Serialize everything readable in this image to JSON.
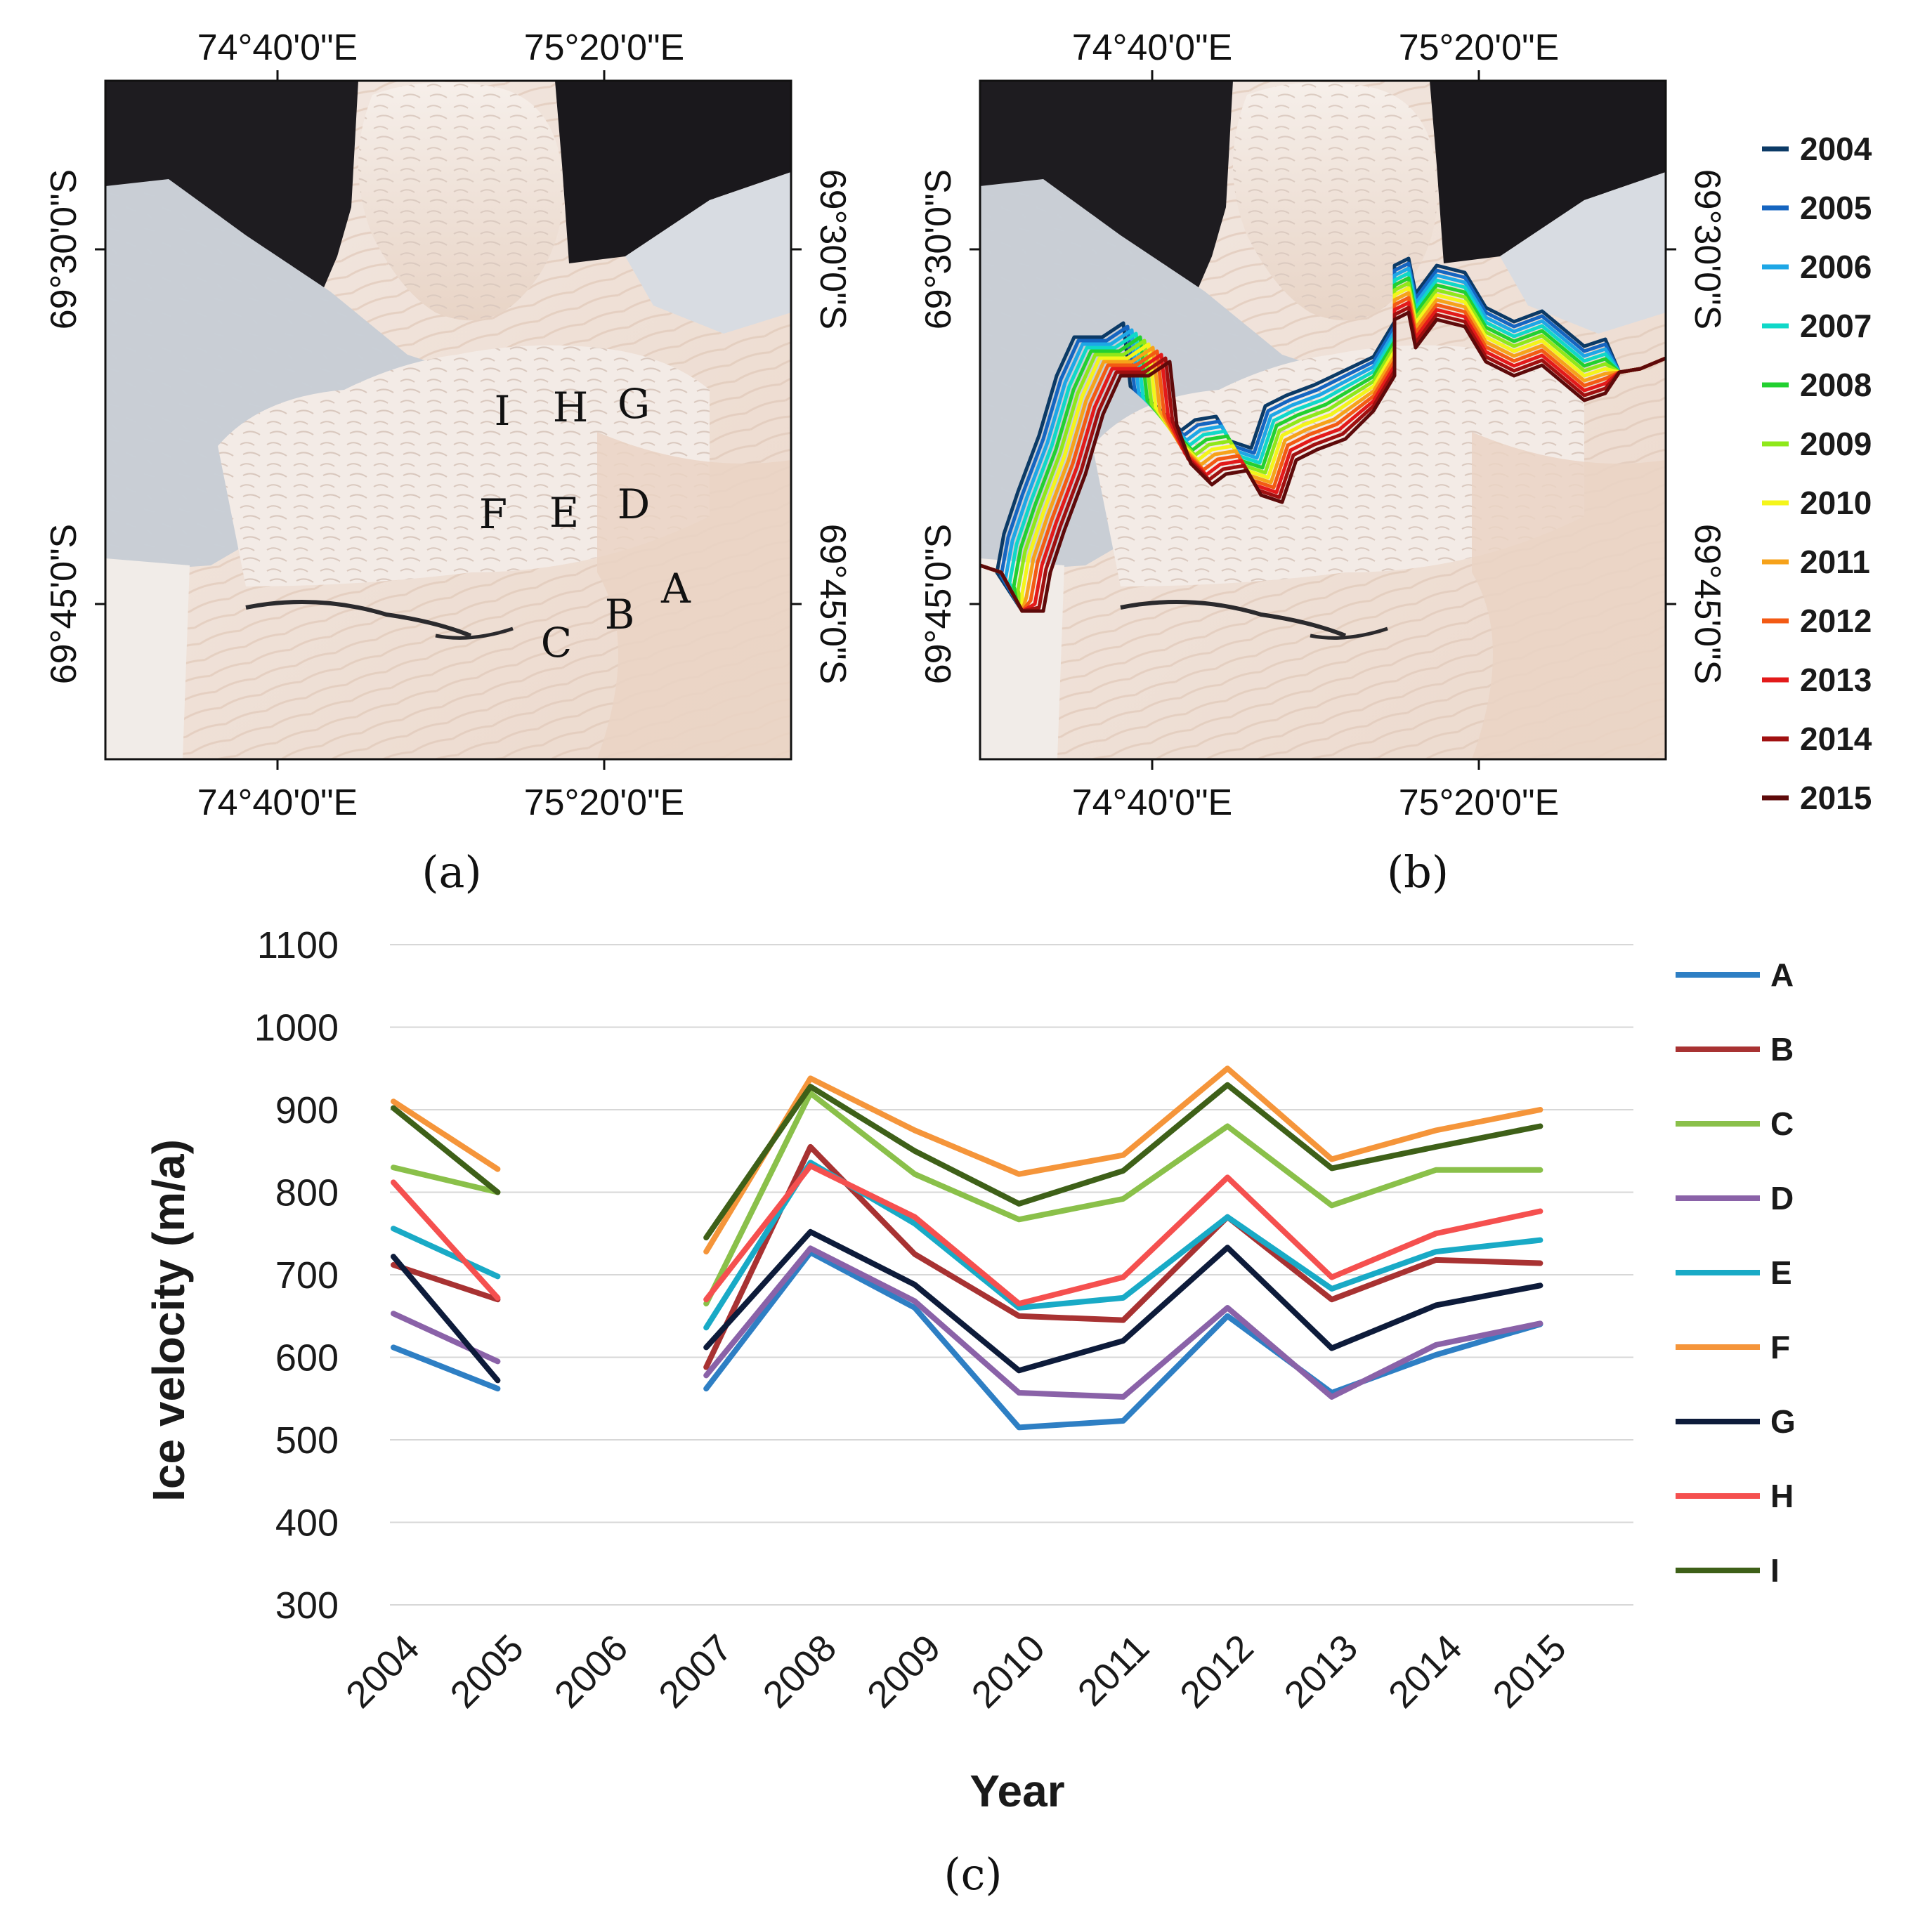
{
  "map_a": {
    "top_lon_labels": [
      "74°40'0\"E",
      "75°20'0\"E"
    ],
    "bottom_lon_labels": [
      "74°40'0\"E",
      "75°20'0\"E"
    ],
    "left_lat_labels": [
      "69°30'0\"S",
      "69°45'0\"S"
    ],
    "right_lat_labels": [
      "69°30'0\"S",
      "69°45'0\"S"
    ],
    "points": [
      "I",
      "H",
      "G",
      "F",
      "E",
      "D",
      "A",
      "B",
      "C"
    ],
    "caption": "(a)"
  },
  "map_b": {
    "top_lon_labels": [
      "74°40'0\"E",
      "75°20'0\"E"
    ],
    "bottom_lon_labels": [
      "74°40'0\"E",
      "75°20'0\"E"
    ],
    "left_lat_labels": [
      "69°30'0\"S",
      "69°45'0\"S"
    ],
    "right_lat_labels": [
      "69°30'0\"S",
      "69°45'0\"S"
    ],
    "legend": [
      {
        "year": "2004",
        "color": "#0b3a66"
      },
      {
        "year": "2005",
        "color": "#1565c0"
      },
      {
        "year": "2006",
        "color": "#1ea7e6"
      },
      {
        "year": "2007",
        "color": "#10d8c8"
      },
      {
        "year": "2008",
        "color": "#22d030"
      },
      {
        "year": "2009",
        "color": "#8fe81a"
      },
      {
        "year": "2010",
        "color": "#f4f51a"
      },
      {
        "year": "2011",
        "color": "#f6a21a"
      },
      {
        "year": "2012",
        "color": "#f35a14"
      },
      {
        "year": "2013",
        "color": "#e31a1a"
      },
      {
        "year": "2014",
        "color": "#a01010"
      },
      {
        "year": "2015",
        "color": "#5e0a0a"
      }
    ],
    "caption": "(b)"
  },
  "chart_data": {
    "type": "line",
    "title": "",
    "xlabel": "Year",
    "ylabel": "Ice velocity (m/a)",
    "categories": [
      "2004",
      "2005",
      "2006",
      "2007",
      "2008",
      "2009",
      "2010",
      "2011",
      "2012",
      "2013",
      "2014",
      "2015"
    ],
    "ylim": [
      300,
      1100
    ],
    "yticks": [
      300,
      400,
      500,
      600,
      700,
      800,
      900,
      1000,
      1100
    ],
    "grid": true,
    "legend_position": "right",
    "series": [
      {
        "name": "A",
        "color": "#2e7fc4",
        "values": [
          612,
          562,
          null,
          562,
          727,
          660,
          515,
          523,
          650,
          557,
          603,
          640
        ]
      },
      {
        "name": "B",
        "color": "#a83232",
        "values": [
          712,
          670,
          null,
          588,
          855,
          725,
          650,
          645,
          770,
          670,
          718,
          714
        ]
      },
      {
        "name": "C",
        "color": "#8ac04a",
        "values": [
          830,
          800,
          null,
          665,
          920,
          822,
          767,
          792,
          880,
          784,
          827,
          827
        ]
      },
      {
        "name": "D",
        "color": "#8a62a8",
        "values": [
          653,
          595,
          null,
          578,
          732,
          668,
          557,
          552,
          660,
          552,
          615,
          641
        ]
      },
      {
        "name": "E",
        "color": "#19aac6",
        "values": [
          756,
          698,
          null,
          636,
          836,
          762,
          660,
          672,
          770,
          683,
          728,
          742
        ]
      },
      {
        "name": "F",
        "color": "#f5953a",
        "values": [
          910,
          828,
          null,
          728,
          938,
          875,
          822,
          845,
          950,
          840,
          875,
          900
        ]
      },
      {
        "name": "G",
        "color": "#0d1b3a",
        "values": [
          722,
          572,
          null,
          612,
          752,
          688,
          584,
          620,
          733,
          611,
          663,
          687
        ]
      },
      {
        "name": "H",
        "color": "#f5504f",
        "values": [
          812,
          672,
          null,
          670,
          832,
          770,
          665,
          697,
          818,
          697,
          750,
          777
        ]
      },
      {
        "name": "I",
        "color": "#3e6018",
        "values": [
          902,
          800,
          null,
          745,
          928,
          850,
          786,
          826,
          930,
          829,
          855,
          880
        ]
      }
    ]
  },
  "caption_c": "(c)"
}
